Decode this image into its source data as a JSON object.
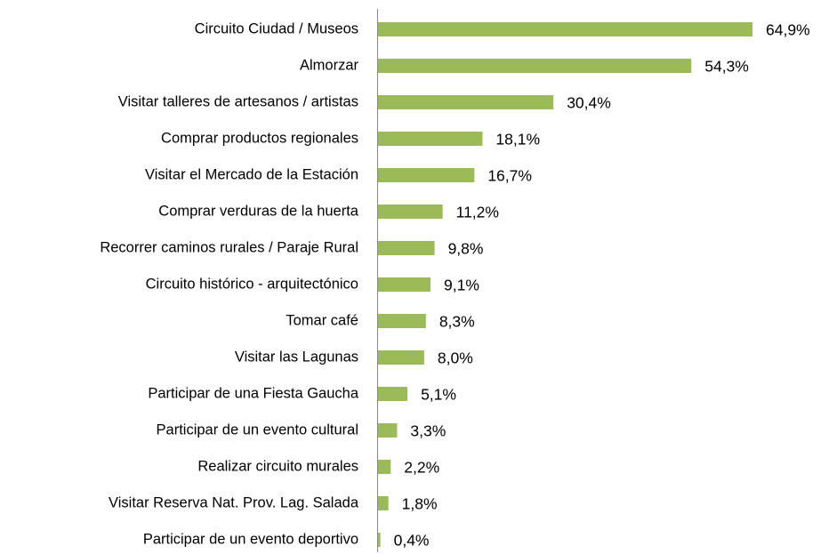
{
  "chart_data": {
    "type": "bar",
    "orientation": "horizontal",
    "color": "#9bbb59",
    "categories": [
      "Circuito Ciudad / Museos",
      "Almorzar",
      "Visitar talleres de artesanos / artistas",
      "Comprar productos regionales",
      "Visitar el Mercado de la Estación",
      "Comprar verduras de la huerta",
      "Recorrer caminos rurales / Paraje Rural",
      "Circuito histórico - arquitectónico",
      "Tomar café",
      "Visitar las Lagunas",
      "Participar de una Fiesta Gaucha",
      "Participar de un evento cultural",
      "Realizar circuito murales",
      "Visitar Reserva Nat. Prov. Lag. Salada",
      "Participar de un evento deportivo"
    ],
    "values": [
      64.9,
      54.3,
      30.4,
      18.1,
      16.7,
      11.2,
      9.8,
      9.1,
      8.3,
      8.0,
      5.1,
      3.3,
      2.2,
      1.8,
      0.4
    ],
    "value_labels": [
      "64,9%",
      "54,3%",
      "30,4%",
      "18,1%",
      "16,7%",
      "11,2%",
      "9,8%",
      "9,1%",
      "8,3%",
      "8,0%",
      "5,1%",
      "3,3%",
      "2,2%",
      "1,8%",
      "0,4%"
    ]
  }
}
